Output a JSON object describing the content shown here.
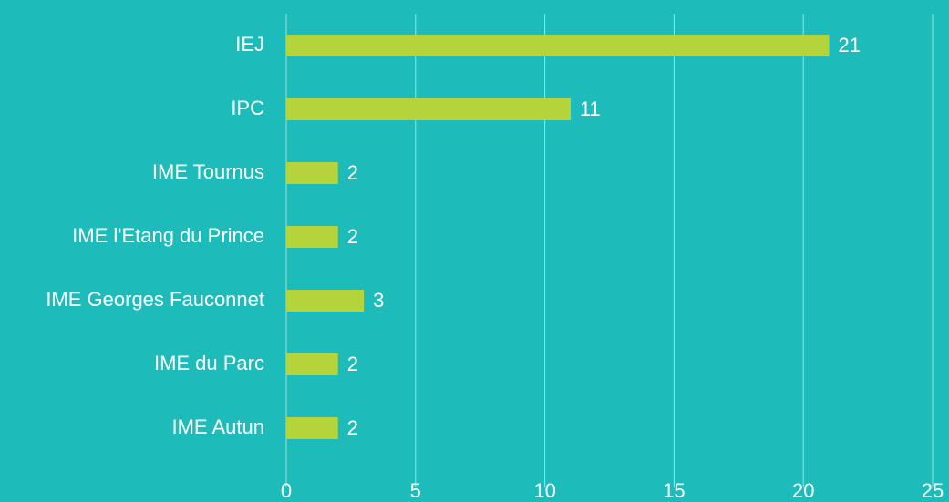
{
  "chart_data": {
    "type": "bar",
    "orientation": "horizontal",
    "categories": [
      "IEJ",
      "IPC",
      "IME Tournus",
      "IME l'Etang du Prince",
      "IME Georges Fauconnet",
      "IME du Parc",
      "IME Autun"
    ],
    "values": [
      21,
      11,
      2,
      2,
      3,
      2,
      2
    ],
    "color": "#b5d33a",
    "xlim": [
      0,
      25
    ],
    "xticks": [
      0,
      5,
      10,
      15,
      20,
      25
    ],
    "grid": true
  }
}
